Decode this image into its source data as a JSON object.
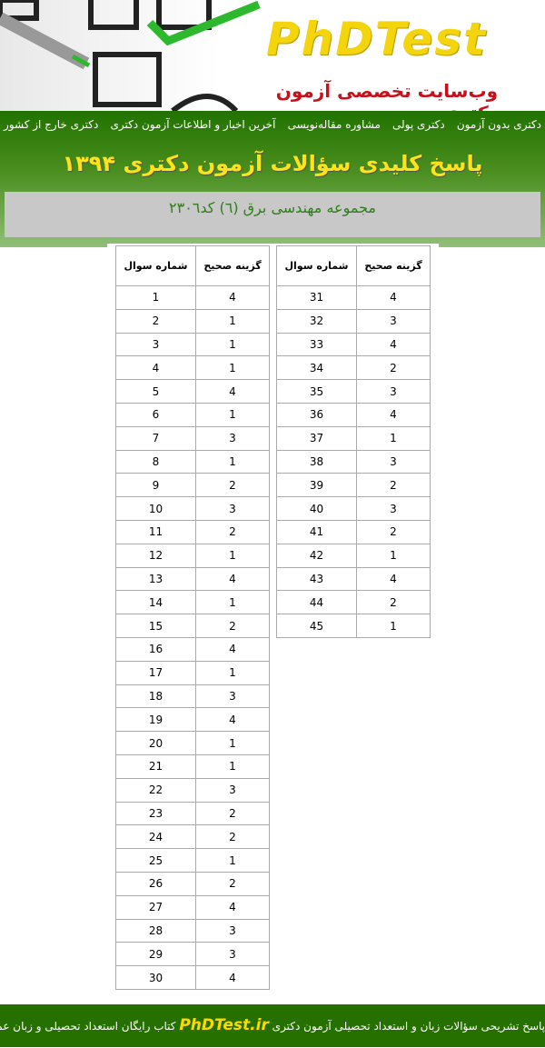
{
  "header": {
    "logo": "PhDTest",
    "tagline": "وب‌سایت تخصصی آزمون دکتری"
  },
  "nav": [
    "دکتری بدون آزمون",
    "دکتری پولی",
    "مشاوره مقاله‌نویسی",
    "آخرین اخبار و اطلاعات آزمون دکتری",
    "دکتری خارج از کشور"
  ],
  "title": "پاسخ کلیدی سؤالات آزمون دکتری ۱۳۹۴",
  "subtitle": "مجموعه مهندسی برق (٦) کد۲۳۰٦",
  "table": {
    "header_number": "شماره سوال",
    "header_answer": "گزینه صحیح",
    "left": [
      [
        1,
        4
      ],
      [
        2,
        1
      ],
      [
        3,
        1
      ],
      [
        4,
        1
      ],
      [
        5,
        4
      ],
      [
        6,
        1
      ],
      [
        7,
        3
      ],
      [
        8,
        1
      ],
      [
        9,
        2
      ],
      [
        10,
        3
      ],
      [
        11,
        2
      ],
      [
        12,
        1
      ],
      [
        13,
        4
      ],
      [
        14,
        1
      ],
      [
        15,
        2
      ],
      [
        16,
        4
      ],
      [
        17,
        1
      ],
      [
        18,
        3
      ],
      [
        19,
        4
      ],
      [
        20,
        1
      ],
      [
        21,
        1
      ],
      [
        22,
        3
      ],
      [
        23,
        2
      ],
      [
        24,
        2
      ],
      [
        25,
        1
      ],
      [
        26,
        2
      ],
      [
        27,
        4
      ],
      [
        28,
        3
      ],
      [
        29,
        3
      ],
      [
        30,
        4
      ]
    ],
    "right": [
      [
        31,
        4
      ],
      [
        32,
        3
      ],
      [
        33,
        4
      ],
      [
        34,
        2
      ],
      [
        35,
        3
      ],
      [
        36,
        4
      ],
      [
        37,
        1
      ],
      [
        38,
        3
      ],
      [
        39,
        2
      ],
      [
        40,
        3
      ],
      [
        41,
        2
      ],
      [
        42,
        1
      ],
      [
        43,
        4
      ],
      [
        44,
        2
      ],
      [
        45,
        1
      ]
    ]
  },
  "footer": {
    "before": "پاسخ تشریحی سؤالات زبان و استعداد تحصیلی آزمون دکتری",
    "brand": "PhDTest.ir",
    "after": "کتاب رایگان استعداد تحصیلی و زبان عمومی"
  },
  "colors": {
    "green": "#267000",
    "yellow": "#ffe21a",
    "red": "#c8101a",
    "gray": "#c8c8c8"
  }
}
